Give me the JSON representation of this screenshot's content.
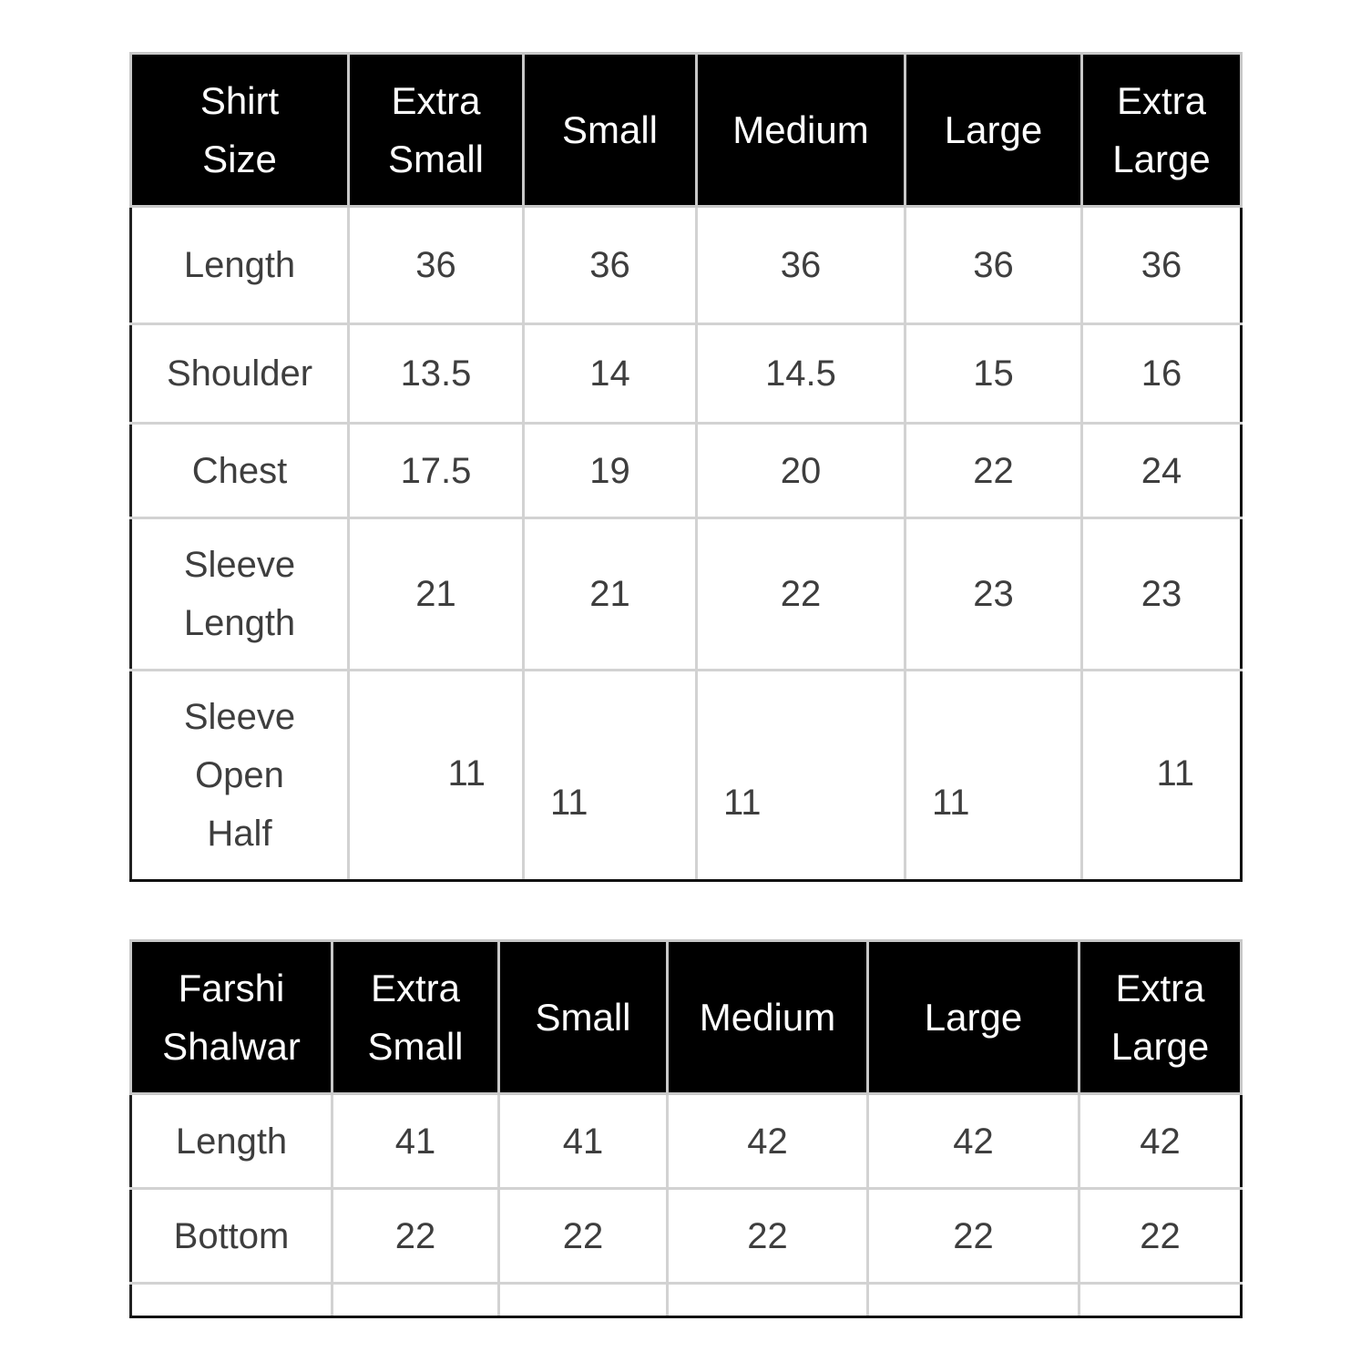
{
  "shirt_table": {
    "headers": [
      "Shirt\nSize",
      "Extra\nSmall",
      "Small",
      "Medium",
      "Large",
      "Extra\nLarge"
    ],
    "rows": [
      {
        "label": "Length",
        "values": [
          "36",
          "36",
          "36",
          "36",
          "36"
        ]
      },
      {
        "label": "Shoulder",
        "values": [
          "13.5",
          "14",
          "14.5",
          "15",
          "16"
        ]
      },
      {
        "label": "Chest",
        "values": [
          "17.5",
          "19",
          "20",
          "22",
          "24"
        ]
      },
      {
        "label": "Sleeve\nLength",
        "values": [
          "21",
          "21",
          "22",
          "23",
          "23"
        ]
      },
      {
        "label": "Sleeve\nOpen\nHalf",
        "values": [
          "11",
          "11",
          "11",
          "11",
          "11"
        ]
      }
    ]
  },
  "shalwar_table": {
    "headers": [
      "Farshi\nShalwar",
      "Extra\nSmall",
      "Small",
      "Medium",
      "Large",
      "Extra\nLarge"
    ],
    "rows": [
      {
        "label": "Length",
        "values": [
          "41",
          "41",
          "42",
          "42",
          "42"
        ]
      },
      {
        "label": "Bottom",
        "values": [
          "22",
          "22",
          "22",
          "22",
          "22"
        ]
      },
      {
        "label": "",
        "values": [
          "",
          "",
          "",
          "",
          ""
        ]
      }
    ]
  }
}
